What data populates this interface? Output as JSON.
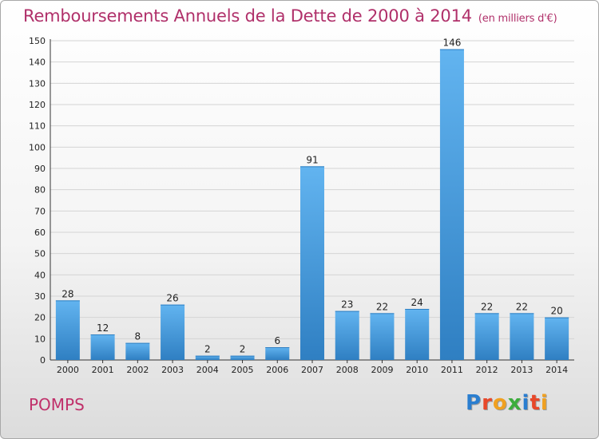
{
  "title": "Remboursements Annuels de la Dette de 2000 à 2014",
  "units": "(en milliers d'€)",
  "commune": "POMPS",
  "brand": "Proxiti",
  "colors": {
    "title": "#b0306a",
    "bar_light": "#62b4f0",
    "bar_dark": "#2f7fc2",
    "grid": "#d4d4d4",
    "logo_letters": [
      "#2a7ed0",
      "#e8482a",
      "#f0a020",
      "#3cad3c",
      "#2a7ed0",
      "#e8482a",
      "#f0a020"
    ]
  },
  "chart_data": {
    "type": "bar",
    "title": "Remboursements Annuels de la Dette de 2000 à 2014",
    "xlabel": "",
    "ylabel": "",
    "categories": [
      "2000",
      "2001",
      "2002",
      "2003",
      "2004",
      "2005",
      "2006",
      "2007",
      "2008",
      "2009",
      "2010",
      "2011",
      "2012",
      "2013",
      "2014"
    ],
    "values": [
      28,
      12,
      8,
      26,
      2,
      2,
      6,
      91,
      23,
      22,
      24,
      146,
      22,
      22,
      20
    ],
    "ylim": [
      0,
      150
    ],
    "yticks": [
      0,
      10,
      20,
      30,
      40,
      50,
      60,
      70,
      80,
      90,
      100,
      110,
      120,
      130,
      140,
      150
    ],
    "grid": true,
    "data_labels": true
  }
}
